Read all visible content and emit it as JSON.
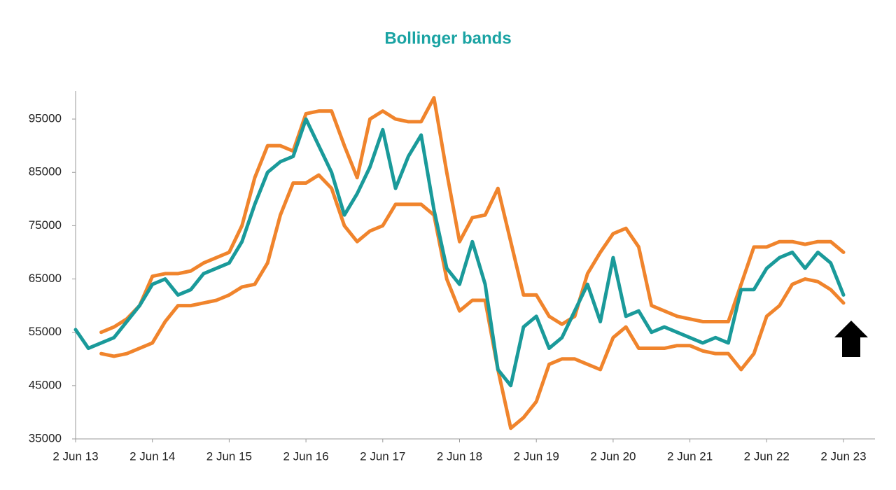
{
  "chart_data": {
    "type": "line",
    "title": "Bollinger bands",
    "categories": [
      "2 Jun 13",
      null,
      null,
      null,
      null,
      null,
      "2 Jun 14",
      null,
      null,
      null,
      null,
      null,
      "2 Jun 15",
      null,
      null,
      null,
      null,
      null,
      "2 Jun 16",
      null,
      null,
      null,
      null,
      null,
      "2 Jun 17",
      null,
      null,
      null,
      null,
      null,
      "2 Jun 18",
      null,
      null,
      null,
      null,
      null,
      "2 Jun 19",
      null,
      null,
      null,
      null,
      null,
      "2 Jun 20",
      null,
      null,
      null,
      null,
      null,
      "2 Jun 21",
      null,
      null,
      null,
      null,
      null,
      "2 Jun 22",
      null,
      null,
      null,
      null,
      null,
      "2 Jun 23"
    ],
    "series": [
      {
        "color": "#1a9a9a",
        "values": [
          55500,
          52000,
          53000,
          54000,
          57000,
          60000,
          64000,
          65000,
          62000,
          63000,
          66000,
          67000,
          68000,
          72000,
          79000,
          85000,
          87000,
          88000,
          95000,
          90000,
          85000,
          77000,
          81000,
          86000,
          93000,
          82000,
          88000,
          92000,
          78000,
          67000,
          64000,
          72000,
          64000,
          48000,
          45000,
          56000,
          58000,
          52000,
          54000,
          59000,
          64000,
          57000,
          69000,
          58000,
          59000,
          55000,
          56000,
          55000,
          54000,
          53000,
          54000,
          53000,
          63000,
          63000,
          67000,
          69000,
          70000,
          67000,
          70000,
          68000,
          62000
        ]
      },
      {
        "color": "#f0842c",
        "values": [
          null,
          null,
          55000,
          56000,
          57500,
          60000,
          65500,
          66000,
          66000,
          66500,
          68000,
          69000,
          70000,
          75000,
          84000,
          90000,
          90000,
          89000,
          96000,
          96500,
          96500,
          90000,
          84000,
          95000,
          96500,
          95000,
          94500,
          94500,
          99000,
          85000,
          72000,
          76500,
          77000,
          82000,
          72000,
          62000,
          62000,
          58000,
          56500,
          58000,
          66000,
          70000,
          73500,
          74500,
          71000,
          60000,
          59000,
          58000,
          57500,
          57000,
          57000,
          57000,
          64000,
          71000,
          71000,
          72000,
          72000,
          71500,
          72000,
          72000,
          70000
        ]
      },
      {
        "color": "#f0842c",
        "values": [
          null,
          null,
          51000,
          50500,
          51000,
          52000,
          53000,
          57000,
          60000,
          60000,
          60500,
          61000,
          62000,
          63500,
          64000,
          68000,
          77000,
          83000,
          83000,
          84500,
          82000,
          75000,
          72000,
          74000,
          75000,
          79000,
          79000,
          79000,
          77000,
          65000,
          59000,
          61000,
          61000,
          48000,
          37000,
          39000,
          42000,
          49000,
          50000,
          50000,
          49000,
          48000,
          54000,
          56000,
          52000,
          52000,
          52000,
          52500,
          52500,
          51500,
          51000,
          51000,
          48000,
          51000,
          58000,
          60000,
          64000,
          65000,
          64500,
          63000,
          60500
        ]
      }
    ],
    "ylim": [
      35000,
      100000
    ],
    "yticks": [
      35000,
      45000,
      55000,
      65000,
      75000,
      85000,
      95000
    ],
    "grid": false
  }
}
